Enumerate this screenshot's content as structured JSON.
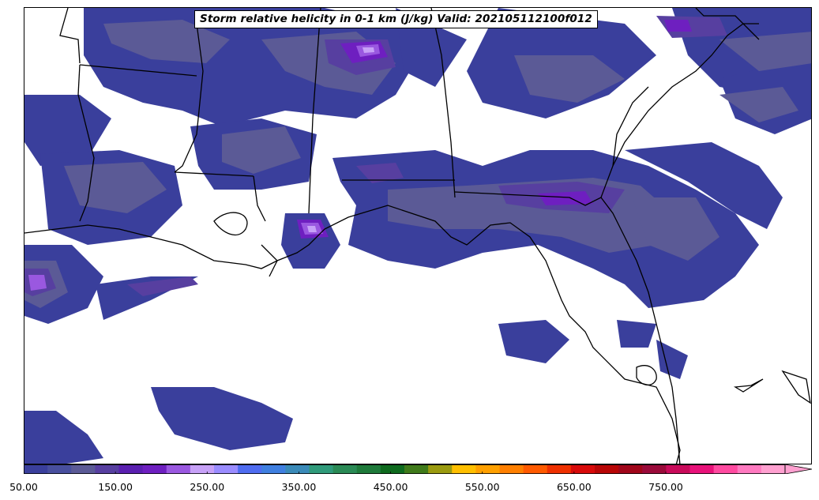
{
  "title": "Storm relative helicity in 0-1 km (J/kg) Valid: 202105112100f012",
  "colorbar": {
    "colors": [
      "#3a3f9c",
      "#484f9e",
      "#5b5a96",
      "#573fa0",
      "#5a1fb0",
      "#6e1fc0",
      "#9a58e0",
      "#c7a1f7",
      "#9a8cff",
      "#4f6cf0",
      "#3f7fe0",
      "#3a8ab8",
      "#2f9a7a",
      "#2a8a55",
      "#1e7a3a",
      "#0e6a1e",
      "#3f7a1a",
      "#9a9a0f",
      "#ffbf00",
      "#ffa000",
      "#ff7f00",
      "#ff5a00",
      "#ee3000",
      "#d80a0a",
      "#b80606",
      "#a0061a",
      "#9a0a3a",
      "#c80a5a",
      "#e8127a",
      "#ff4aa0",
      "#ff7ac0",
      "#ffa0d0"
    ],
    "tick_labels": [
      "50.00",
      "150.00",
      "250.00",
      "350.00",
      "450.00",
      "550.00",
      "650.00",
      "750.00"
    ],
    "tick_values": [
      50,
      150,
      250,
      350,
      450,
      550,
      650,
      750
    ],
    "vmin": 50,
    "vmax": 880,
    "extend": "max"
  },
  "map": {
    "region": "Gulf Coast / Southeastern United States",
    "contour_colors": {
      "level1": "#3a3f9c",
      "level2": "#5b5a96",
      "level3": "#573fa0",
      "level4": "#6e1fc0",
      "level5": "#9a58e0",
      "level6": "#c7a1f7"
    },
    "boundary_color": "#000000"
  }
}
